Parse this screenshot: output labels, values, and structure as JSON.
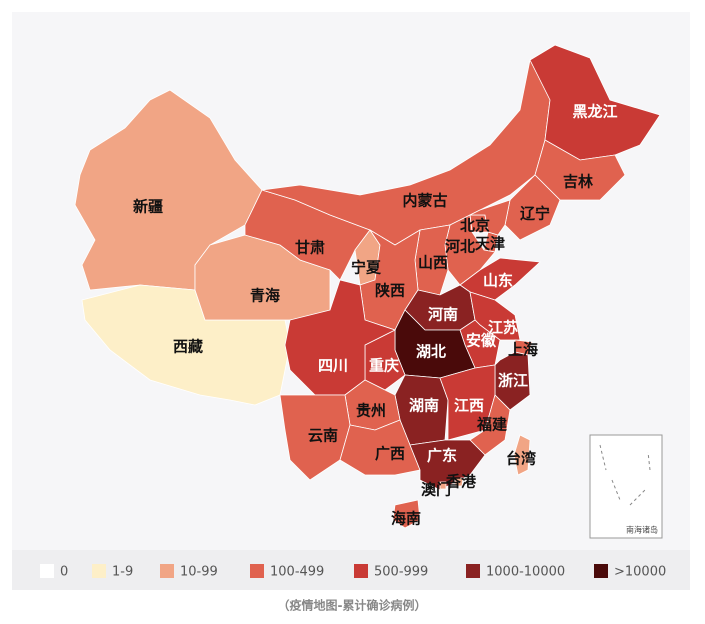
{
  "map": {
    "regions": [
      {
        "name": "新疆",
        "color": "#f1a585"
      },
      {
        "name": "西藏",
        "color": "#fdefc8"
      },
      {
        "name": "青海",
        "color": "#f1a585"
      },
      {
        "name": "甘肃",
        "color": "#e0624f"
      },
      {
        "name": "内蒙古",
        "color": "#e0624f"
      },
      {
        "name": "黑龙江",
        "color": "#c93a35"
      },
      {
        "name": "吉林",
        "color": "#e0624f"
      },
      {
        "name": "辽宁",
        "color": "#e0624f"
      },
      {
        "name": "北京",
        "color": "#e0624f"
      },
      {
        "name": "天津",
        "color": "#e0624f"
      },
      {
        "name": "河北",
        "color": "#e0624f"
      },
      {
        "name": "山西",
        "color": "#e0624f"
      },
      {
        "name": "宁夏",
        "color": "#f1a585"
      },
      {
        "name": "陕西",
        "color": "#e0624f"
      },
      {
        "name": "山东",
        "color": "#c93a35"
      },
      {
        "name": "河南",
        "color": "#8a2222"
      },
      {
        "name": "江苏",
        "color": "#c93a35"
      },
      {
        "name": "安徽",
        "color": "#c93a35"
      },
      {
        "name": "上海",
        "color": "#e0624f"
      },
      {
        "name": "湖北",
        "color": "#4a0a0a"
      },
      {
        "name": "重庆",
        "color": "#c93a35"
      },
      {
        "name": "四川",
        "color": "#c93a35"
      },
      {
        "name": "浙江",
        "color": "#8a2222"
      },
      {
        "name": "湖南",
        "color": "#8a2222"
      },
      {
        "name": "江西",
        "color": "#c93a35"
      },
      {
        "name": "贵州",
        "color": "#e0624f"
      },
      {
        "name": "福建",
        "color": "#e0624f"
      },
      {
        "name": "云南",
        "color": "#e0624f"
      },
      {
        "name": "广西",
        "color": "#e0624f"
      },
      {
        "name": "广东",
        "color": "#8a2222"
      },
      {
        "name": "台湾",
        "color": "#f1a585"
      },
      {
        "name": "香港",
        "color": "#f1a585"
      },
      {
        "name": "澳门",
        "color": "#f1a585"
      },
      {
        "name": "海南",
        "color": "#e0624f"
      }
    ],
    "inset_label": "南海诸岛"
  },
  "legend": [
    {
      "label": "0",
      "color": "#ffffff"
    },
    {
      "label": "1-9",
      "color": "#fdefc8"
    },
    {
      "label": "10-99",
      "color": "#f1a585"
    },
    {
      "label": "100-499",
      "color": "#e0624f"
    },
    {
      "label": "500-999",
      "color": "#c93a35"
    },
    {
      "label": "1000-10000",
      "color": "#8a2222"
    },
    {
      "label": ">10000",
      "color": "#4a0a0a"
    }
  ],
  "caption": "（疫情地图-累计确诊病例）"
}
